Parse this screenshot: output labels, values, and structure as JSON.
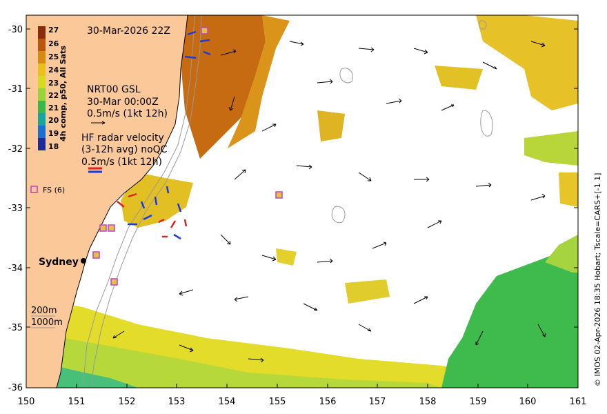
{
  "map": {
    "timestamp": "30-Mar-2026 22Z",
    "lon_ticks": [
      "150",
      "151",
      "152",
      "153",
      "154",
      "155",
      "156",
      "157",
      "158",
      "159",
      "160",
      "161"
    ],
    "lat_ticks": [
      "-30",
      "-31",
      "-32",
      "-33",
      "-34",
      "-35",
      "-36"
    ],
    "city": "Sydney",
    "depth_contours": [
      "200m",
      "1000m"
    ],
    "credit": "© IMOS 02-Apr-2026 18:35 Hobart; Tscale=CARS+[-1 1]"
  },
  "colorbar": {
    "title": "4h comp, p50, All Sats",
    "labels": [
      "27",
      "26",
      "25",
      "24",
      "23",
      "22",
      "21",
      "20",
      "19",
      "18"
    ],
    "colors": [
      "#8a2c0c",
      "#b8560e",
      "#d68a14",
      "#e8c020",
      "#d9d920",
      "#9ad23a",
      "#39b84a",
      "#15a6a0",
      "#1b6fd0",
      "#1a2c9a"
    ]
  },
  "legends": {
    "model": {
      "line1": "NRT00 GSL",
      "line2": "30-Mar 00:00Z",
      "line3": "0.5m/s (1kt 12h)"
    },
    "hf_radar": {
      "line1": "HF radar velocity",
      "line2": "(3-12h avg) noQC",
      "line3": "0.5m/s (1kt 12h)"
    },
    "floats": {
      "label": "FS (6)"
    }
  },
  "colors": {
    "land": "#fbc89a",
    "ocean": "#ffffff",
    "float_marker": "#c040c0",
    "radar_red": "#e02020",
    "radar_blue": "#1a3ae0"
  }
}
